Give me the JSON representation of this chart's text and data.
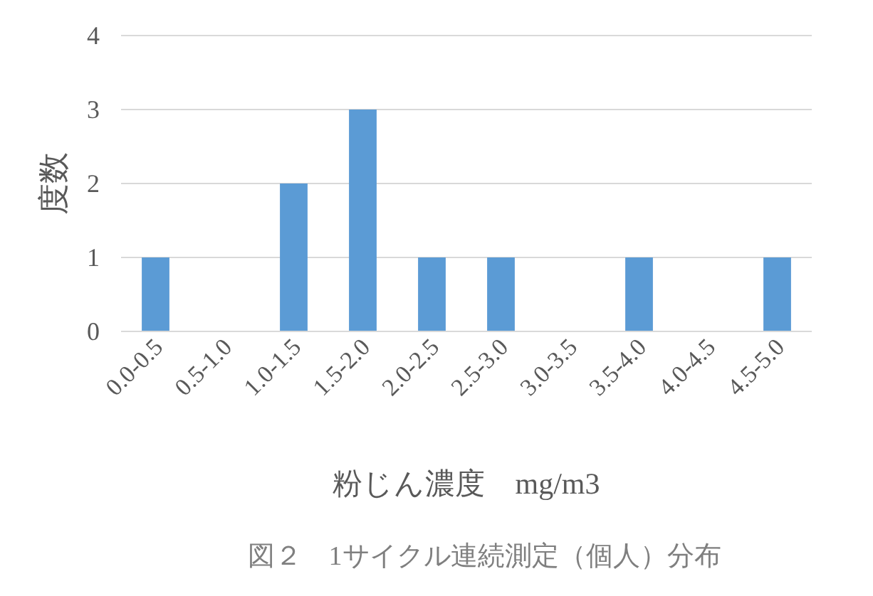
{
  "chart_data": {
    "type": "bar",
    "ylabel": "度数",
    "xlabel": "粉じん濃度　mg/m3",
    "categories": [
      "0.0-0.5",
      "0.5-1.0",
      "1.0-1.5",
      "1.5-2.0",
      "2.0-2.5",
      "2.5-3.0",
      "3.0-3.5",
      "3.5-4.0",
      "4.0-4.5",
      "4.5-5.0"
    ],
    "values": [
      1,
      0,
      2,
      3,
      1,
      1,
      0,
      1,
      0,
      1
    ],
    "color": "#5b9bd5",
    "ylim": [
      0,
      4
    ],
    "yticks": [
      0,
      1,
      2,
      3,
      4
    ],
    "grid": "y",
    "annotations": [
      "図２　1サイクル連続測定（個人）分布"
    ]
  }
}
